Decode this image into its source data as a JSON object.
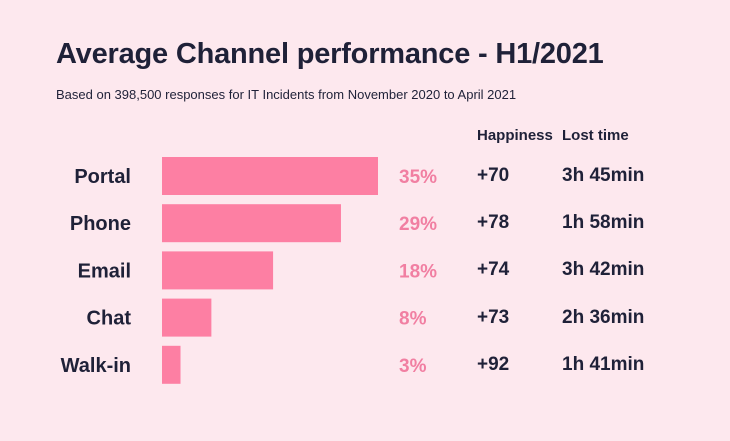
{
  "colors": {
    "background": "#fde8ee",
    "bar": "#fd7fa3",
    "percent_text": "#f17fa2",
    "text": "#1f2138"
  },
  "chart_data": {
    "type": "bar",
    "orientation": "horizontal",
    "title": "Average Channel performance - H1/2021",
    "subtitle": "Based on 398,500 responses for IT Incidents from November 2020 to April 2021",
    "categories": [
      "Portal",
      "Phone",
      "Email",
      "Chat",
      "Walk-in"
    ],
    "values": [
      35,
      29,
      18,
      8,
      3
    ],
    "value_labels": [
      "35%",
      "29%",
      "18%",
      "8%",
      "3%"
    ],
    "xlim": [
      0,
      35
    ],
    "grid": false,
    "columns": [
      {
        "header": "Happiness",
        "values": [
          "+70",
          "+78",
          "+74",
          "+73",
          "+92"
        ]
      },
      {
        "header": "Lost time",
        "values": [
          "3h 45min",
          "1h 58min",
          "3h 42min",
          "2h 36min",
          "1h 41min"
        ]
      }
    ]
  }
}
